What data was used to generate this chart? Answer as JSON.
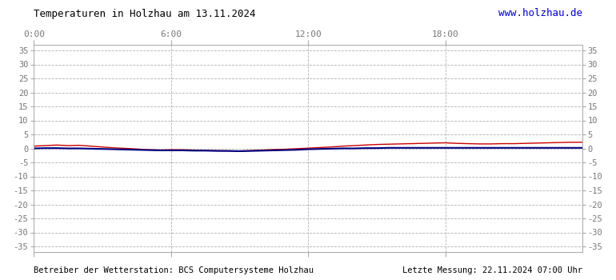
{
  "title": "Temperaturen in Holzhau am 13.11.2024",
  "title_url": "www.holzhau.de",
  "footer_left": "Betreiber der Wetterstation: BCS Computersysteme Holzhau",
  "footer_right": "Letzte Messung: 22.11.2024 07:00 Uhr",
  "x_ticks": [
    0,
    360,
    720,
    1080
  ],
  "x_tick_labels": [
    "0:00",
    "6:00",
    "12:00",
    "18:00"
  ],
  "x_min": 0,
  "x_max": 1439,
  "y_min": -37,
  "y_max": 37,
  "y_ticks": [
    -35,
    -30,
    -25,
    -20,
    -15,
    -10,
    -5,
    0,
    5,
    10,
    15,
    20,
    25,
    30,
    35
  ],
  "bg_color": "#ffffff",
  "plot_bg_color": "#ffffff",
  "grid_color": "#aaaaaa",
  "title_color": "#000000",
  "url_color": "#0000cc",
  "footer_color": "#000000",
  "tick_label_color": "#777777",
  "line_red_color": "#cc0000",
  "line_blue_color": "#000080",
  "red_data_x": [
    0,
    30,
    60,
    90,
    120,
    150,
    180,
    210,
    240,
    270,
    300,
    330,
    360,
    390,
    420,
    450,
    480,
    510,
    540,
    570,
    600,
    630,
    660,
    690,
    720,
    750,
    780,
    810,
    840,
    870,
    900,
    930,
    960,
    990,
    1020,
    1050,
    1080,
    1110,
    1140,
    1170,
    1200,
    1230,
    1260,
    1290,
    1320,
    1350,
    1380,
    1410,
    1439
  ],
  "red_data_y": [
    0.8,
    1.0,
    1.2,
    1.0,
    1.1,
    0.8,
    0.5,
    0.2,
    0.0,
    -0.2,
    -0.5,
    -0.6,
    -0.5,
    -0.5,
    -0.6,
    -0.8,
    -0.8,
    -0.9,
    -0.9,
    -0.8,
    -0.6,
    -0.4,
    -0.3,
    -0.1,
    0.1,
    0.3,
    0.5,
    0.8,
    1.0,
    1.2,
    1.4,
    1.5,
    1.6,
    1.7,
    1.8,
    1.9,
    2.0,
    1.8,
    1.7,
    1.6,
    1.6,
    1.7,
    1.7,
    1.8,
    1.9,
    2.0,
    2.1,
    2.2,
    2.2
  ],
  "blue_data_x": [
    0,
    30,
    60,
    90,
    120,
    150,
    180,
    210,
    240,
    270,
    300,
    330,
    360,
    390,
    420,
    450,
    480,
    510,
    540,
    570,
    600,
    630,
    660,
    690,
    720,
    750,
    780,
    810,
    840,
    870,
    900,
    930,
    960,
    990,
    1020,
    1050,
    1080,
    1110,
    1140,
    1170,
    1200,
    1230,
    1260,
    1290,
    1320,
    1350,
    1380,
    1410,
    1439
  ],
  "blue_data_y": [
    0.0,
    0.1,
    0.1,
    0.0,
    0.0,
    -0.1,
    -0.2,
    -0.3,
    -0.4,
    -0.5,
    -0.6,
    -0.7,
    -0.7,
    -0.7,
    -0.8,
    -0.8,
    -0.9,
    -0.9,
    -1.0,
    -0.9,
    -0.8,
    -0.7,
    -0.6,
    -0.5,
    -0.3,
    -0.2,
    -0.1,
    0.0,
    0.0,
    0.1,
    0.1,
    0.2,
    0.2,
    0.2,
    0.2,
    0.2,
    0.2,
    0.2,
    0.2,
    0.2,
    0.2,
    0.2,
    0.2,
    0.2,
    0.2,
    0.2,
    0.2,
    0.2,
    0.2
  ]
}
